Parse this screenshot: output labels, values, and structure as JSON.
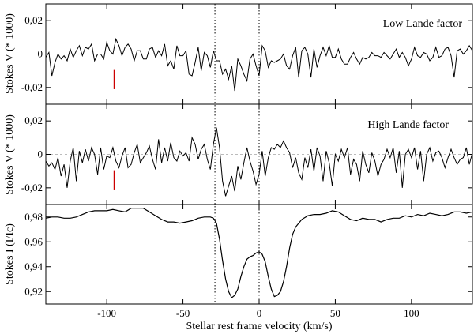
{
  "chart_data": {
    "type": "line",
    "xlabel": "Stellar rest frame velocity (km/s)",
    "xlim": [
      -140,
      140
    ],
    "x_ticks": [
      -100,
      -50,
      0,
      50,
      100
    ],
    "x_tick_labels": [
      "-100",
      "-50",
      "0",
      "50",
      "100"
    ],
    "vertical_markers": [
      -29,
      0
    ],
    "colors": {
      "line": "#000000",
      "marker": "#cc0000",
      "zero_line": "#bbbbbb",
      "vline": "#000000"
    },
    "panels": [
      {
        "ylabel": "Stokes V (* 1000)",
        "ylim": [
          -0.03,
          0.03
        ],
        "y_ticks": [
          0.02,
          0,
          -0.02
        ],
        "y_tick_labels": [
          "0,02",
          "0",
          "-0,02"
        ],
        "annotation": "Low Lande factor",
        "zero_line": true,
        "marker": {
          "x": -95,
          "y1": -0.0095,
          "y2": -0.021
        },
        "series": [
          {
            "x": [
              -140,
              -138,
              -136,
              -134,
              -132,
              -130,
              -128,
              -126,
              -124,
              -122,
              -120,
              -118,
              -116,
              -114,
              -112,
              -110,
              -108,
              -106,
              -104,
              -102,
              -100,
              -98,
              -96,
              -94,
              -92,
              -90,
              -88,
              -86,
              -84,
              -82,
              -80,
              -78,
              -76,
              -74,
              -72,
              -70,
              -68,
              -66,
              -64,
              -62,
              -60,
              -58,
              -56,
              -54,
              -52,
              -50,
              -48,
              -46,
              -44,
              -42,
              -40,
              -38,
              -36,
              -34,
              -32,
              -30,
              -28,
              -26,
              -24,
              -22,
              -20,
              -18,
              -16,
              -14,
              -12,
              -10,
              -8,
              -6,
              -4,
              -2,
              0,
              2,
              4,
              6,
              8,
              10,
              12,
              14,
              16,
              18,
              20,
              22,
              24,
              26,
              28,
              30,
              32,
              34,
              36,
              38,
              40,
              42,
              44,
              46,
              48,
              50,
              52,
              54,
              56,
              58,
              60,
              62,
              64,
              66,
              68,
              70,
              72,
              74,
              76,
              78,
              80,
              82,
              84,
              86,
              88,
              90,
              92,
              94,
              96,
              98,
              100,
              102,
              104,
              106,
              108,
              110,
              112,
              114,
              116,
              118,
              120,
              122,
              124,
              126,
              128,
              130,
              132,
              134,
              136,
              138,
              140
            ],
            "y": [
              -0.002,
              0.001,
              -0.013,
              -0.005,
              0.0,
              -0.003,
              -0.001,
              -0.004,
              0.003,
              -0.002,
              0.002,
              0.005,
              -0.001,
              0.004,
              0.003,
              0.006,
              -0.004,
              0.0,
              0.0,
              -0.003,
              0.007,
              0.002,
              0.0,
              0.009,
              0.005,
              -0.001,
              0.004,
              0.006,
              0.003,
              -0.004,
              0.002,
              0.002,
              -0.003,
              -0.003,
              0.003,
              0.004,
              -0.002,
              0.002,
              -0.001,
              0.006,
              -0.007,
              -0.004,
              -0.009,
              0.005,
              -0.001,
              -0.001,
              0.002,
              -0.012,
              -0.013,
              -0.005,
              0.004,
              -0.01,
              0.001,
              -0.001,
              -0.008,
              0.002,
              -0.004,
              -0.004,
              -0.012,
              -0.009,
              -0.015,
              -0.007,
              -0.022,
              -0.003,
              -0.007,
              -0.012,
              -0.016,
              -0.003,
              0.0,
              -0.007,
              -0.013,
              0.005,
              0.002,
              -0.008,
              -0.004,
              -0.005,
              -0.004,
              -0.003,
              0.0,
              -0.007,
              -0.009,
              -0.001,
              0.004,
              -0.014,
              0.002,
              0.004,
              0.0,
              -0.014,
              0.003,
              -0.008,
              -0.001,
              0.004,
              -0.001,
              0.005,
              -0.002,
              -0.002,
              0.003,
              -0.003,
              -0.006,
              -0.006,
              -0.002,
              0.001,
              -0.003,
              -0.006,
              -0.002,
              -0.003,
              -0.002,
              0.001,
              -0.001,
              -0.001,
              -0.002,
              0.001,
              -0.001,
              -0.003,
              0.0,
              0.003,
              -0.002,
              0.001,
              -0.002,
              -0.007,
              -0.003,
              0.004,
              -0.001,
              -0.002,
              0.001,
              0.0,
              -0.004,
              -0.002,
              0.004,
              -0.002,
              -0.001,
              0.003,
              0.004,
              -0.001,
              -0.014,
              0.002,
              0.003,
              0.0,
              0.002,
              0.005,
              0.002
            ]
          }
        ]
      },
      {
        "ylabel": "Stokes V (* 1000)",
        "ylim": [
          -0.03,
          0.03
        ],
        "y_ticks": [
          0.02,
          0,
          -0.02
        ],
        "y_tick_labels": [
          "0,02",
          "0",
          "-0,02"
        ],
        "annotation": "High Lande factor",
        "zero_line": true,
        "marker": {
          "x": -95,
          "y1": -0.0095,
          "y2": -0.021
        },
        "series": [
          {
            "x": [
              -140,
              -138,
              -136,
              -134,
              -132,
              -130,
              -128,
              -126,
              -124,
              -122,
              -120,
              -118,
              -116,
              -114,
              -112,
              -110,
              -108,
              -106,
              -104,
              -102,
              -100,
              -98,
              -96,
              -94,
              -92,
              -90,
              -88,
              -86,
              -84,
              -82,
              -80,
              -78,
              -76,
              -74,
              -72,
              -70,
              -68,
              -66,
              -64,
              -62,
              -60,
              -58,
              -56,
              -54,
              -52,
              -50,
              -48,
              -46,
              -44,
              -42,
              -40,
              -38,
              -36,
              -34,
              -32,
              -30,
              -28,
              -26,
              -24,
              -22,
              -20,
              -18,
              -16,
              -14,
              -12,
              -10,
              -8,
              -6,
              -4,
              -2,
              0,
              2,
              4,
              6,
              8,
              10,
              12,
              14,
              16,
              18,
              20,
              22,
              24,
              26,
              28,
              30,
              32,
              34,
              36,
              38,
              40,
              42,
              44,
              46,
              48,
              50,
              52,
              54,
              56,
              58,
              60,
              62,
              64,
              66,
              68,
              70,
              72,
              74,
              76,
              78,
              80,
              82,
              84,
              86,
              88,
              90,
              92,
              94,
              96,
              98,
              100,
              102,
              104,
              106,
              108,
              110,
              112,
              114,
              116,
              118,
              120,
              122,
              124,
              126,
              128,
              130,
              132,
              134,
              136,
              138,
              140
            ],
            "y": [
              -0.004,
              -0.007,
              -0.005,
              -0.009,
              -0.002,
              -0.013,
              -0.006,
              -0.02,
              -0.004,
              0.004,
              -0.016,
              0.002,
              -0.005,
              0.003,
              -0.004,
              0.004,
              0.0,
              -0.012,
              0.004,
              -0.009,
              -0.001,
              -0.002,
              0.004,
              -0.004,
              -0.008,
              -0.001,
              0.004,
              -0.008,
              -0.006,
              0.001,
              0.006,
              -0.005,
              -0.002,
              0.001,
              0.005,
              -0.003,
              -0.009,
              0.009,
              -0.005,
              0.004,
              -0.004,
              0.007,
              -0.002,
              -0.004,
              0.002,
              -0.001,
              0.001,
              -0.004,
              0.01,
              0.006,
              -0.003,
              0.003,
              0.006,
              -0.003,
              -0.009,
              0.006,
              0.016,
              0.004,
              -0.016,
              -0.025,
              -0.019,
              -0.013,
              -0.022,
              -0.007,
              -0.015,
              -0.005,
              0.004,
              -0.004,
              -0.01,
              -0.018,
              -0.012,
              0.002,
              -0.013,
              -0.002,
              0.004,
              0.003,
              0.006,
              0.004,
              0.008,
              0.004,
              0.001,
              -0.008,
              -0.002,
              -0.011,
              -0.015,
              -0.002,
              -0.008,
              0.003,
              -0.01,
              0.004,
              -0.001,
              -0.016,
              0.002,
              -0.005,
              -0.019,
              0.0,
              -0.004,
              0.003,
              -0.002,
              0.004,
              -0.012,
              -0.003,
              -0.006,
              -0.016,
              0.002,
              -0.006,
              -0.011,
              0.001,
              -0.004,
              -0.013,
              -0.006,
              -0.003,
              0.003,
              -0.002,
              0.004,
              -0.011,
              0.002,
              -0.02,
              0.0,
              0.003,
              -0.002,
              0.004,
              -0.009,
              0.002,
              -0.016,
              0.0,
              0.004,
              -0.004,
              0.001,
              0.002,
              -0.002,
              -0.008,
              -0.002,
              0.003,
              -0.002,
              -0.006,
              -0.003,
              -0.002,
              0.004,
              -0.006,
              0.001
            ]
          }
        ]
      },
      {
        "ylabel": "Stokes I (I/Ic)",
        "ylim": [
          0.91,
          0.99
        ],
        "y_ticks": [
          0.98,
          0.96,
          0.94,
          0.92
        ],
        "y_tick_labels": [
          "0,98",
          "0,96",
          "0,94",
          "0,92"
        ],
        "annotation": "",
        "zero_line": false,
        "series": [
          {
            "x": [
              -140,
              -136,
              -132,
              -128,
              -124,
              -120,
              -116,
              -112,
              -108,
              -104,
              -100,
              -96,
              -92,
              -88,
              -84,
              -80,
              -76,
              -72,
              -68,
              -64,
              -60,
              -56,
              -52,
              -48,
              -44,
              -40,
              -36,
              -32,
              -30,
              -28,
              -26,
              -24,
              -22,
              -20,
              -18,
              -16,
              -14,
              -12,
              -10,
              -8,
              -6,
              -4,
              -2,
              0,
              2,
              4,
              6,
              8,
              10,
              12,
              14,
              16,
              18,
              20,
              22,
              24,
              28,
              32,
              36,
              40,
              44,
              48,
              52,
              56,
              60,
              64,
              68,
              72,
              76,
              80,
              84,
              88,
              92,
              96,
              100,
              104,
              108,
              112,
              116,
              120,
              124,
              128,
              132,
              136,
              140
            ],
            "y": [
              0.979,
              0.98,
              0.98,
              0.979,
              0.979,
              0.98,
              0.982,
              0.984,
              0.985,
              0.985,
              0.985,
              0.986,
              0.985,
              0.984,
              0.987,
              0.987,
              0.987,
              0.984,
              0.981,
              0.978,
              0.976,
              0.976,
              0.975,
              0.976,
              0.977,
              0.979,
              0.98,
              0.98,
              0.979,
              0.975,
              0.962,
              0.945,
              0.93,
              0.92,
              0.915,
              0.917,
              0.922,
              0.932,
              0.94,
              0.946,
              0.948,
              0.949,
              0.951,
              0.952,
              0.95,
              0.944,
              0.932,
              0.922,
              0.916,
              0.917,
              0.92,
              0.928,
              0.94,
              0.955,
              0.966,
              0.972,
              0.978,
              0.981,
              0.982,
              0.982,
              0.983,
              0.985,
              0.984,
              0.981,
              0.978,
              0.977,
              0.979,
              0.978,
              0.978,
              0.976,
              0.978,
              0.979,
              0.979,
              0.981,
              0.98,
              0.982,
              0.981,
              0.983,
              0.982,
              0.981,
              0.982,
              0.984,
              0.984,
              0.983,
              0.984
            ]
          }
        ]
      }
    ]
  }
}
